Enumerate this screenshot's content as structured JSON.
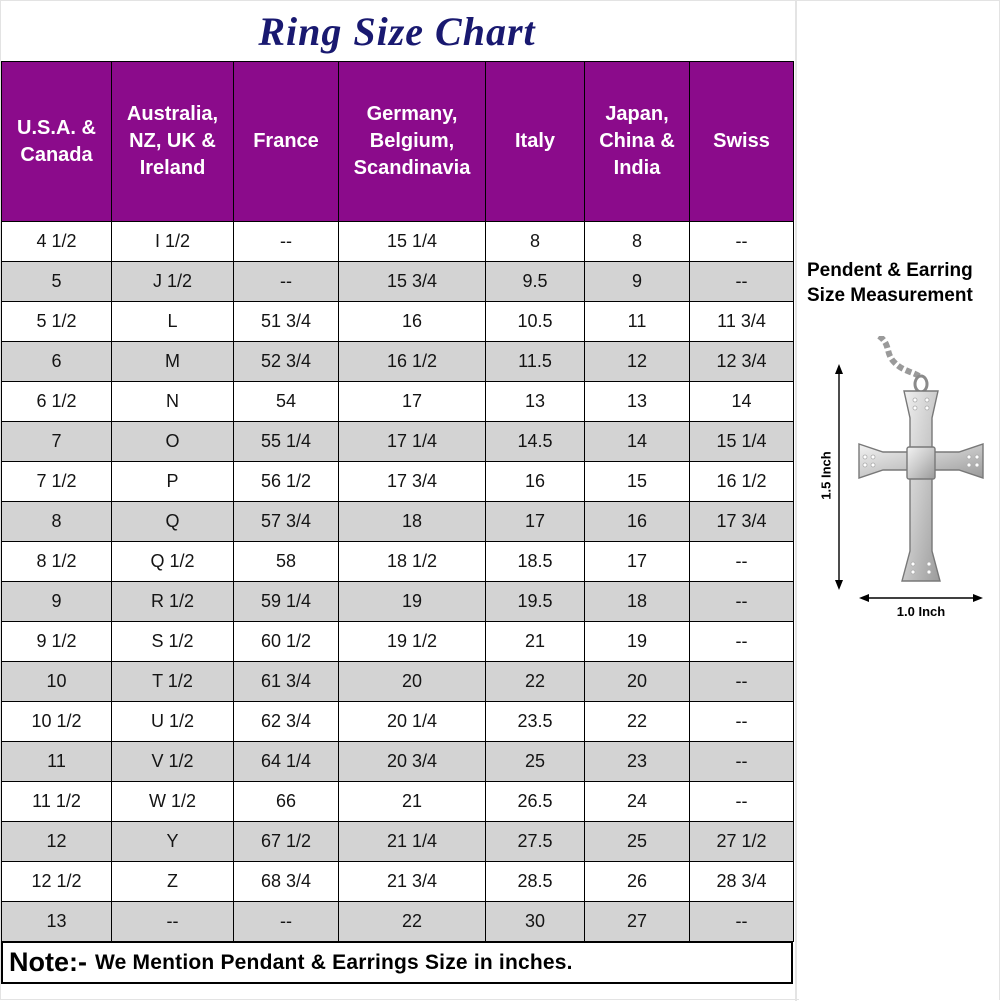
{
  "title": "Ring Size Chart",
  "chart_data": {
    "type": "table",
    "title": "Ring Size Chart",
    "columns": [
      "U.S.A. & Canada",
      "Australia, NZ, UK & Ireland",
      "France",
      "Germany, Belgium, Scandinavia",
      "Italy",
      "Japan, China & India",
      "Swiss"
    ],
    "rows": [
      [
        "4 1/2",
        "I 1/2",
        "--",
        "15 1/4",
        "8",
        "8",
        "--"
      ],
      [
        "5",
        "J 1/2",
        "--",
        "15 3/4",
        "9.5",
        "9",
        "--"
      ],
      [
        "5 1/2",
        "L",
        "51 3/4",
        "16",
        "10.5",
        "11",
        "11 3/4"
      ],
      [
        "6",
        "M",
        "52 3/4",
        "16 1/2",
        "11.5",
        "12",
        "12 3/4"
      ],
      [
        "6 1/2",
        "N",
        "54",
        "17",
        "13",
        "13",
        "14"
      ],
      [
        "7",
        "O",
        "55 1/4",
        "17 1/4",
        "14.5",
        "14",
        "15 1/4"
      ],
      [
        "7 1/2",
        "P",
        "56 1/2",
        "17 3/4",
        "16",
        "15",
        "16 1/2"
      ],
      [
        "8",
        "Q",
        "57 3/4",
        "18",
        "17",
        "16",
        "17 3/4"
      ],
      [
        "8 1/2",
        "Q 1/2",
        "58",
        "18 1/2",
        "18.5",
        "17",
        "--"
      ],
      [
        "9",
        "R 1/2",
        "59 1/4",
        "19",
        "19.5",
        "18",
        "--"
      ],
      [
        "9 1/2",
        "S 1/2",
        "60 1/2",
        "19 1/2",
        "21",
        "19",
        "--"
      ],
      [
        "10",
        "T 1/2",
        "61 3/4",
        "20",
        "22",
        "20",
        "--"
      ],
      [
        "10 1/2",
        "U 1/2",
        "62 3/4",
        "20 1/4",
        "23.5",
        "22",
        "--"
      ],
      [
        "11",
        "V 1/2",
        "64 1/4",
        "20 3/4",
        "25",
        "23",
        "--"
      ],
      [
        "11 1/2",
        "W 1/2",
        "66",
        "21",
        "26.5",
        "24",
        "--"
      ],
      [
        "12",
        "Y",
        "67 1/2",
        "21 1/4",
        "27.5",
        "25",
        "27 1/2"
      ],
      [
        "12 1/2",
        "Z",
        "68 3/4",
        "21 3/4",
        "28.5",
        "26",
        "28 3/4"
      ],
      [
        "13",
        "--",
        "--",
        "22",
        "30",
        "27",
        "--"
      ]
    ]
  },
  "note": {
    "prefix": "Note:-",
    "text": "We Mention Pendant & Earrings Size in inches."
  },
  "side_panel": {
    "heading_line1": "Pendent & Earring",
    "heading_line2": "Size Measurement",
    "height_label": "1.5 Inch",
    "width_label": "1.0 Inch"
  },
  "colors": {
    "header_bg": "#8B0B8B",
    "header_text": "#FFFFFF",
    "row_alt_bg": "#D3D3D3",
    "title_color": "#191970"
  }
}
